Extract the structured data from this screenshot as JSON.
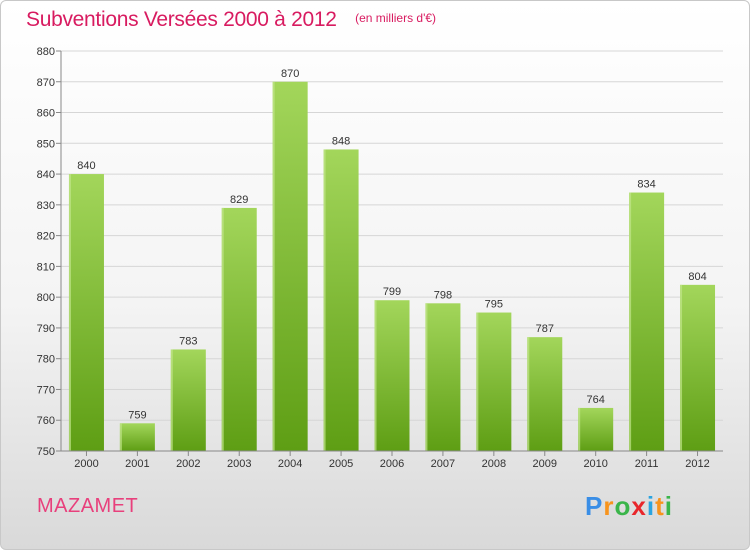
{
  "chart_title": "Subventions Versées 2000 à 2012",
  "chart_subtitle": "(en milliers d'€)",
  "city_name": "MAZAMET",
  "logo": {
    "letters": [
      "P",
      "r",
      "o",
      "x",
      "i",
      "t",
      "i"
    ],
    "colors": [
      "#3a8ee6",
      "#f7941d",
      "#3ab54a",
      "#e8262b",
      "#2ba4e0",
      "#f7941d",
      "#3ab54a"
    ]
  },
  "colors": {
    "title": "#d81b60",
    "bar_light": "#a3d65b",
    "bar_dark": "#5e9e14",
    "grid": "#d6d6d6",
    "axis": "#888888"
  },
  "chart_data": {
    "type": "bar",
    "categories": [
      "2000",
      "2001",
      "2002",
      "2003",
      "2004",
      "2005",
      "2006",
      "2007",
      "2008",
      "2009",
      "2010",
      "2011",
      "2012"
    ],
    "values": [
      840,
      759,
      783,
      829,
      870,
      848,
      799,
      798,
      795,
      787,
      764,
      834,
      804
    ],
    "yticks": [
      750,
      760,
      770,
      780,
      790,
      800,
      810,
      820,
      830,
      840,
      850,
      860,
      870,
      880
    ],
    "ylim": [
      750,
      880
    ],
    "grid": true,
    "data_labels": true
  }
}
